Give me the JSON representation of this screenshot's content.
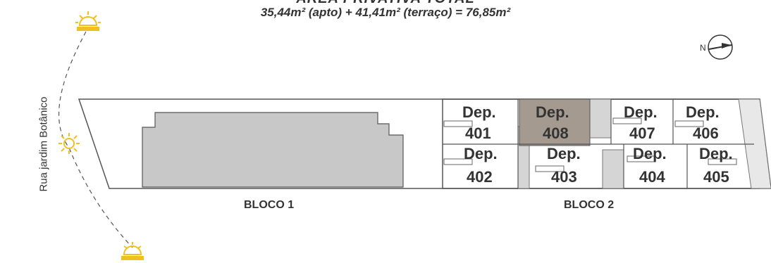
{
  "title": {
    "line1": "ÁREA PRIVATIVA TOTAL",
    "line2": "35,44m² (apto) + 41,41m² (terraço) = 76,85m²"
  },
  "street_label": "Rua jardim Botânico",
  "compass_label": "N",
  "blocks": [
    {
      "label": "BLOCO 1"
    },
    {
      "label": "BLOCO 2"
    }
  ],
  "units": [
    {
      "line1": "Dep.",
      "line2": "401",
      "highlighted": false
    },
    {
      "line1": "Dep.",
      "line2": "408",
      "highlighted": true
    },
    {
      "line1": "Dep.",
      "line2": "407",
      "highlighted": false
    },
    {
      "line1": "Dep.",
      "line2": "406",
      "highlighted": false
    },
    {
      "line1": "Dep.",
      "line2": "402",
      "highlighted": false
    },
    {
      "line1": "Dep.",
      "line2": "403",
      "highlighted": false
    },
    {
      "line1": "Dep.",
      "line2": "404",
      "highlighted": false
    },
    {
      "line1": "Dep.",
      "line2": "405",
      "highlighted": false
    }
  ],
  "sun_icons": [
    "sunrise-icon",
    "sun-icon",
    "sunset-icon"
  ],
  "colors": {
    "highlight": "#a59a8f",
    "bloco1_fill": "#c8c8c8",
    "sun": "#f0c020",
    "outline": "#555555"
  }
}
